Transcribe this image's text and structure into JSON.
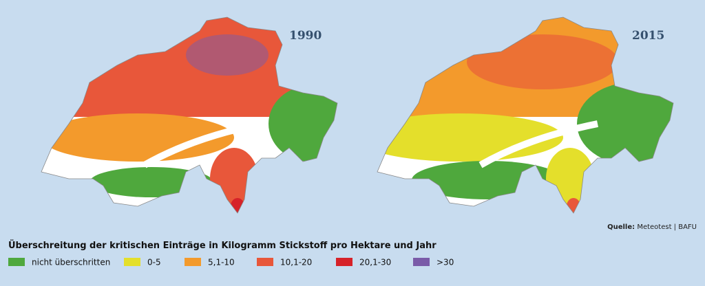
{
  "maps": [
    {
      "label": "1990"
    },
    {
      "label": "2015"
    }
  ],
  "source": {
    "prefix": "Quelle:",
    "text": "Meteotest | BAFU"
  },
  "legend": {
    "title": "Überschreitung der kritischen Einträge in Kilogramm Stickstoff pro Hektare und Jahr",
    "items": [
      {
        "label": "nicht überschritten",
        "color": "#4fa83d"
      },
      {
        "label": "0-5",
        "color": "#e4df2b"
      },
      {
        "label": "5,1-10",
        "color": "#f39a2c"
      },
      {
        "label": "10,1-20",
        "color": "#e8573a"
      },
      {
        "label": "20,1-30",
        "color": "#d62229"
      },
      {
        "label": ">30",
        "color": "#7a5ba8"
      }
    ]
  }
}
